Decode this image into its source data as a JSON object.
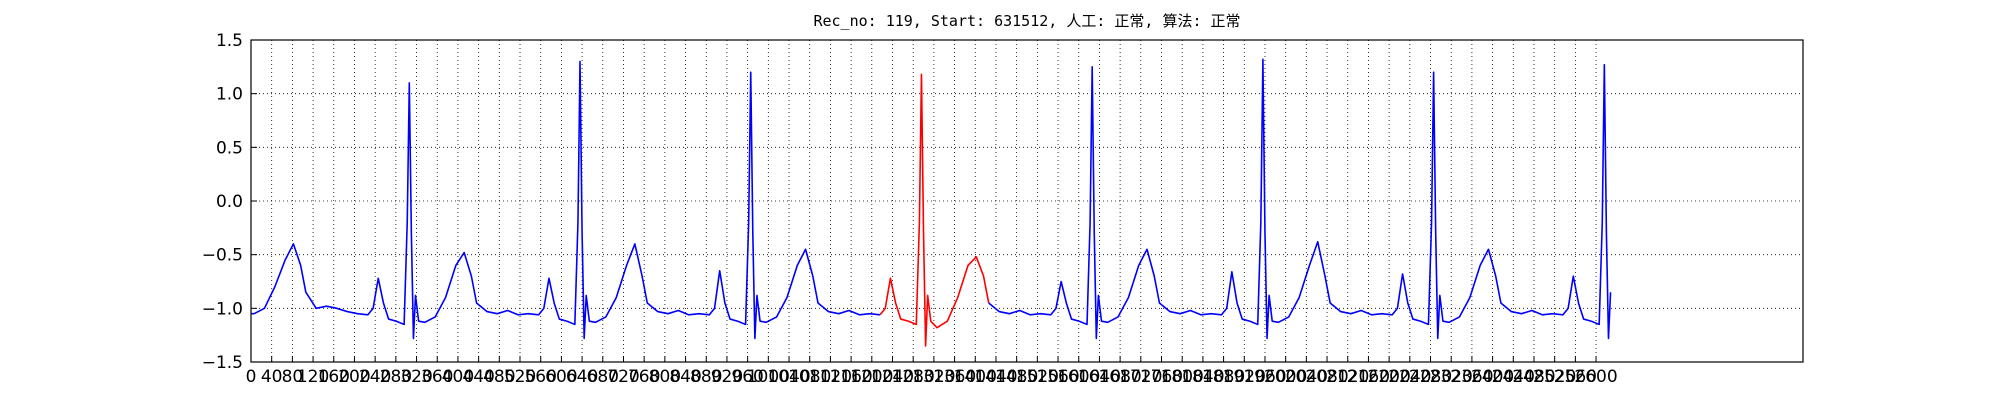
{
  "chart_data": {
    "type": "line",
    "title": "Rec_no: 119, Start: 631512, 人工: 正常, 算法: 正常",
    "x": [
      0,
      6,
      26,
      46,
      66,
      82,
      96,
      106,
      126,
      146,
      166,
      186,
      206,
      226,
      236,
      246,
      256,
      266,
      281,
      296,
      302,
      306,
      310,
      314,
      318,
      324,
      336,
      356,
      376,
      396,
      412,
      426,
      436,
      456,
      476,
      496,
      516,
      536,
      556,
      566,
      576,
      586,
      596,
      611,
      626,
      632,
      636,
      640,
      644,
      648,
      654,
      666,
      686,
      706,
      726,
      742,
      756,
      766,
      786,
      806,
      826,
      846,
      866,
      886,
      896,
      906,
      916,
      926,
      941,
      956,
      962,
      966,
      970,
      974,
      978,
      984,
      996,
      1016,
      1036,
      1056,
      1072,
      1086,
      1096,
      1116,
      1136,
      1156,
      1176,
      1196,
      1216,
      1226,
      1236,
      1246,
      1256,
      1271,
      1286,
      1292,
      1296,
      1300,
      1304,
      1308,
      1314,
      1326,
      1346,
      1366,
      1386,
      1402,
      1416,
      1426,
      1446,
      1466,
      1486,
      1506,
      1526,
      1546,
      1556,
      1566,
      1576,
      1586,
      1601,
      1616,
      1622,
      1626,
      1630,
      1634,
      1638,
      1644,
      1656,
      1676,
      1696,
      1716,
      1732,
      1746,
      1756,
      1776,
      1796,
      1816,
      1836,
      1856,
      1876,
      1886,
      1896,
      1906,
      1916,
      1931,
      1946,
      1952,
      1956,
      1960,
      1964,
      1968,
      1974,
      1986,
      2006,
      2026,
      2046,
      2062,
      2076,
      2086,
      2106,
      2126,
      2146,
      2166,
      2186,
      2206,
      2216,
      2226,
      2236,
      2246,
      2261,
      2276,
      2282,
      2286,
      2290,
      2294,
      2298,
      2304,
      2316,
      2336,
      2356,
      2376,
      2392,
      2406,
      2416,
      2436,
      2456,
      2476,
      2496,
      2516,
      2536,
      2546,
      2556,
      2566,
      2576,
      2591,
      2606,
      2612,
      2616,
      2620,
      2624,
      2628
    ],
    "series": [
      {
        "color": "blue",
        "values": [
          -1.05,
          -1.05,
          -1.0,
          -0.8,
          -0.55,
          -0.4,
          -0.6,
          -0.85,
          -1.0,
          -0.98,
          -1.0,
          -1.03,
          -1.05,
          -1.06,
          -1.0,
          -0.72,
          -0.95,
          -1.1,
          -1.12,
          -1.15,
          -0.2,
          1.1,
          -0.3,
          -1.28,
          -0.88,
          -1.12,
          -1.13,
          -1.08,
          -0.9,
          -0.6,
          -0.48,
          -0.7,
          -0.95,
          -1.03,
          -1.05,
          -1.02,
          -1.06,
          -1.05,
          -1.06,
          -1.0,
          -0.72,
          -0.95,
          -1.1,
          -1.12,
          -1.15,
          -0.2,
          1.3,
          -0.3,
          -1.28,
          -0.88,
          -1.12,
          -1.13,
          -1.08,
          -0.9,
          -0.6,
          -0.4,
          -0.7,
          -0.95,
          -1.03,
          -1.05,
          -1.02,
          -1.06,
          -1.05,
          -1.06,
          -1.0,
          -0.65,
          -0.95,
          -1.1,
          -1.12,
          -1.15,
          -0.2,
          1.2,
          -0.3,
          -1.28,
          -0.88,
          -1.12,
          -1.13,
          -1.08,
          -0.9,
          -0.6,
          -0.45,
          -0.7,
          -0.95,
          -1.03,
          -1.05,
          -1.02,
          -1.06,
          -1.05,
          -1.06,
          null,
          null,
          null,
          null,
          null,
          null,
          null,
          null,
          null,
          null,
          null,
          null,
          null,
          null,
          null,
          null,
          null,
          null,
          -0.95,
          -1.03,
          -1.05,
          -1.02,
          -1.06,
          -1.05,
          -1.06,
          -1.0,
          -0.75,
          -0.95,
          -1.1,
          -1.12,
          -1.15,
          -0.2,
          1.25,
          -0.3,
          -1.28,
          -0.88,
          -1.12,
          -1.13,
          -1.08,
          -0.9,
          -0.6,
          -0.45,
          -0.7,
          -0.95,
          -1.03,
          -1.05,
          -1.02,
          -1.06,
          -1.05,
          -1.06,
          -1.0,
          -0.66,
          -0.95,
          -1.1,
          -1.12,
          -1.15,
          -0.2,
          1.32,
          -0.3,
          -1.28,
          -0.88,
          -1.12,
          -1.13,
          -1.08,
          -0.9,
          -0.6,
          -0.38,
          -0.7,
          -0.95,
          -1.03,
          -1.05,
          -1.02,
          -1.06,
          -1.05,
          -1.06,
          -1.0,
          -0.68,
          -0.95,
          -1.1,
          -1.12,
          -1.15,
          -0.2,
          1.2,
          -0.3,
          -1.28,
          -0.88,
          -1.12,
          -1.13,
          -1.08,
          -0.9,
          -0.6,
          -0.45,
          -0.7,
          -0.95,
          -1.03,
          -1.05,
          -1.02,
          -1.06,
          -1.05,
          -1.06,
          -1.0,
          -0.7,
          -0.95,
          -1.1,
          -1.12,
          -1.15,
          -0.2,
          1.27,
          -0.3,
          -1.28,
          -0.85
        ]
      },
      {
        "color": "red",
        "values": [
          null,
          null,
          null,
          null,
          null,
          null,
          null,
          null,
          null,
          null,
          null,
          null,
          null,
          null,
          null,
          null,
          null,
          null,
          null,
          null,
          null,
          null,
          null,
          null,
          null,
          null,
          null,
          null,
          null,
          null,
          null,
          null,
          null,
          null,
          null,
          null,
          null,
          null,
          null,
          null,
          null,
          null,
          null,
          null,
          null,
          null,
          null,
          null,
          null,
          null,
          null,
          null,
          null,
          null,
          null,
          null,
          null,
          null,
          null,
          null,
          null,
          null,
          null,
          null,
          null,
          null,
          null,
          null,
          null,
          null,
          null,
          null,
          null,
          null,
          null,
          null,
          null,
          null,
          null,
          null,
          null,
          null,
          null,
          null,
          null,
          null,
          null,
          null,
          -1.06,
          -1.0,
          -0.72,
          -0.95,
          -1.1,
          -1.12,
          -1.15,
          -0.2,
          1.18,
          -0.3,
          -1.35,
          -0.88,
          -1.12,
          -1.18,
          -1.12,
          -0.9,
          -0.6,
          -0.52,
          -0.7,
          -0.95,
          null,
          null,
          null,
          null,
          null,
          null,
          null,
          null,
          null,
          null,
          null,
          null,
          null,
          null,
          null,
          null,
          null,
          null,
          null,
          null,
          null,
          null,
          null,
          null,
          null,
          null,
          null,
          null,
          null,
          null,
          null,
          null,
          null,
          null,
          null,
          null,
          null,
          null,
          null,
          null,
          null,
          null,
          null,
          null,
          null,
          null,
          null,
          null,
          null,
          null,
          null,
          null,
          null,
          null,
          null,
          null,
          null,
          null,
          null,
          null,
          null,
          null,
          null,
          null,
          null,
          null,
          null,
          null,
          null,
          null,
          null,
          null,
          null,
          null,
          null,
          null,
          null,
          null,
          null,
          null,
          null,
          null,
          null,
          null,
          null,
          null,
          null,
          null,
          null,
          null,
          null,
          null
        ]
      }
    ],
    "xlim": [
      0,
      3000
    ],
    "ylim": [
      -1.5,
      1.5
    ],
    "xticks": [
      0,
      40,
      80,
      120,
      160,
      200,
      240,
      280,
      320,
      360,
      400,
      440,
      480,
      520,
      560,
      600,
      640,
      680,
      720,
      760,
      800,
      840,
      880,
      920,
      960,
      1000,
      1040,
      1080,
      1120,
      1160,
      1200,
      1240,
      1280,
      1320,
      1360,
      1400,
      1440,
      1480,
      1520,
      1560,
      1600,
      1640,
      1680,
      1720,
      1760,
      1800,
      1840,
      1880,
      1920,
      1960,
      2000,
      2040,
      2080,
      2120,
      2160,
      2200,
      2240,
      2280,
      2320,
      2360,
      2400,
      2440,
      2480,
      2520,
      2560,
      2600
    ],
    "yticks": [
      {
        "value": -1.5,
        "label": "−1.5"
      },
      {
        "value": -1,
        "label": "−1.0"
      },
      {
        "value": -0.5,
        "label": "−0.5"
      },
      {
        "value": 0,
        "label": "0.0"
      },
      0.5,
      {
        "value": 1,
        "label": "1.0"
      },
      1.5
    ],
    "grid": true
  }
}
